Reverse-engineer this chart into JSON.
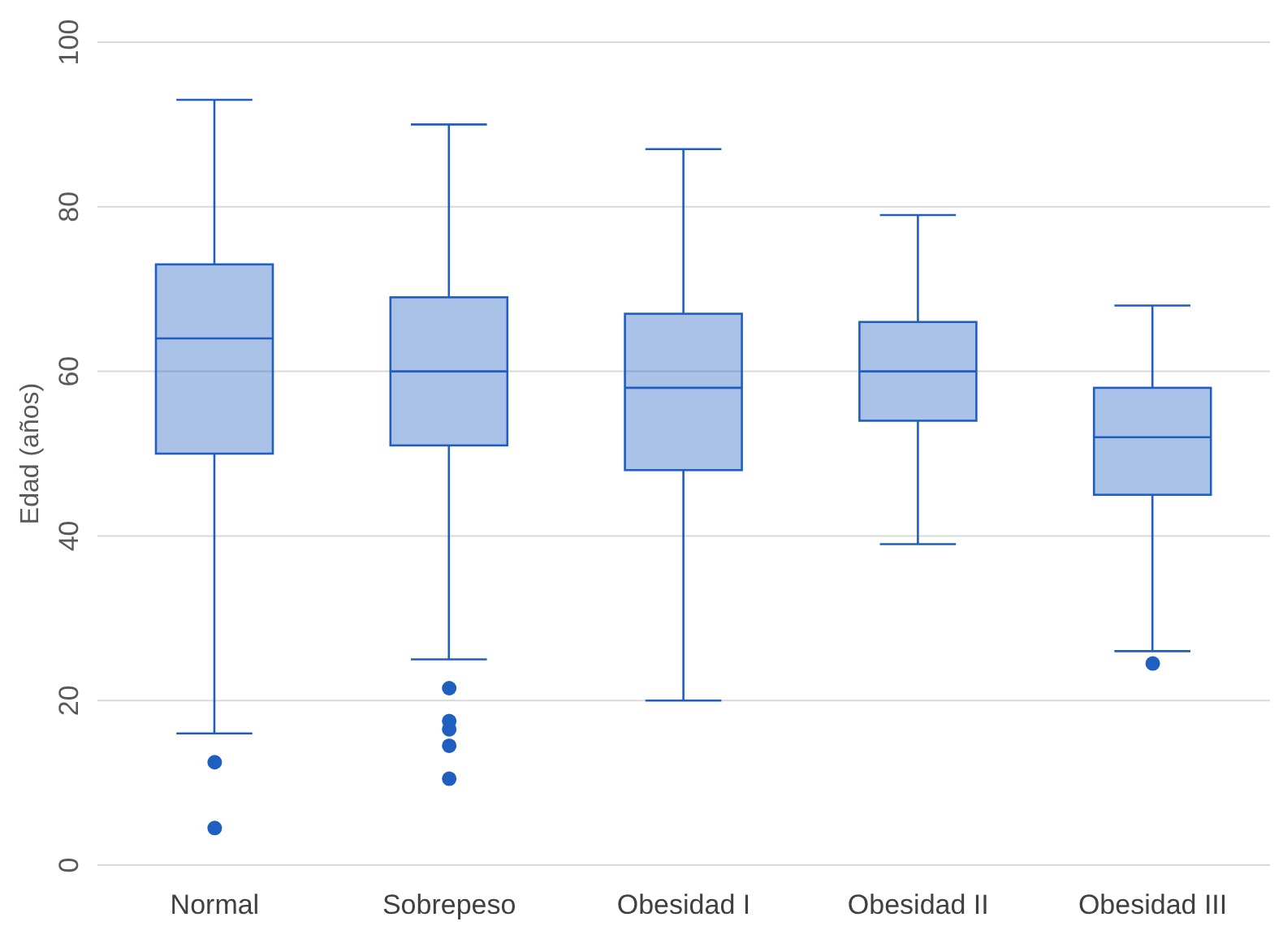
{
  "chart_data": {
    "type": "box",
    "ylabel": "Edad (años)",
    "categories": [
      "Normal",
      "Sobrepeso",
      "Obesidad I",
      "Obesidad II",
      "Obesidad III"
    ],
    "color": "#1f5fbf",
    "boxes": [
      {
        "low": 16,
        "q1": 50,
        "median": 64,
        "q3": 73,
        "high": 93,
        "outliers": [
          12.5,
          4.5
        ]
      },
      {
        "low": 25,
        "q1": 51,
        "median": 60,
        "q3": 69,
        "high": 90,
        "outliers": [
          21.5,
          17.5,
          16.5,
          14.5,
          10.5
        ]
      },
      {
        "low": 20,
        "q1": 48,
        "median": 58,
        "q3": 67,
        "high": 87
      },
      {
        "low": 39,
        "q1": 54,
        "median": 60,
        "q3": 66,
        "high": 79
      },
      {
        "low": 26,
        "q1": 45,
        "median": 52,
        "q3": 58,
        "high": 68,
        "outliers": [
          24.5
        ]
      }
    ],
    "ylim": [
      0,
      100
    ],
    "yticks": [
      0,
      20,
      40,
      60,
      80,
      100
    ],
    "grid": "y"
  }
}
